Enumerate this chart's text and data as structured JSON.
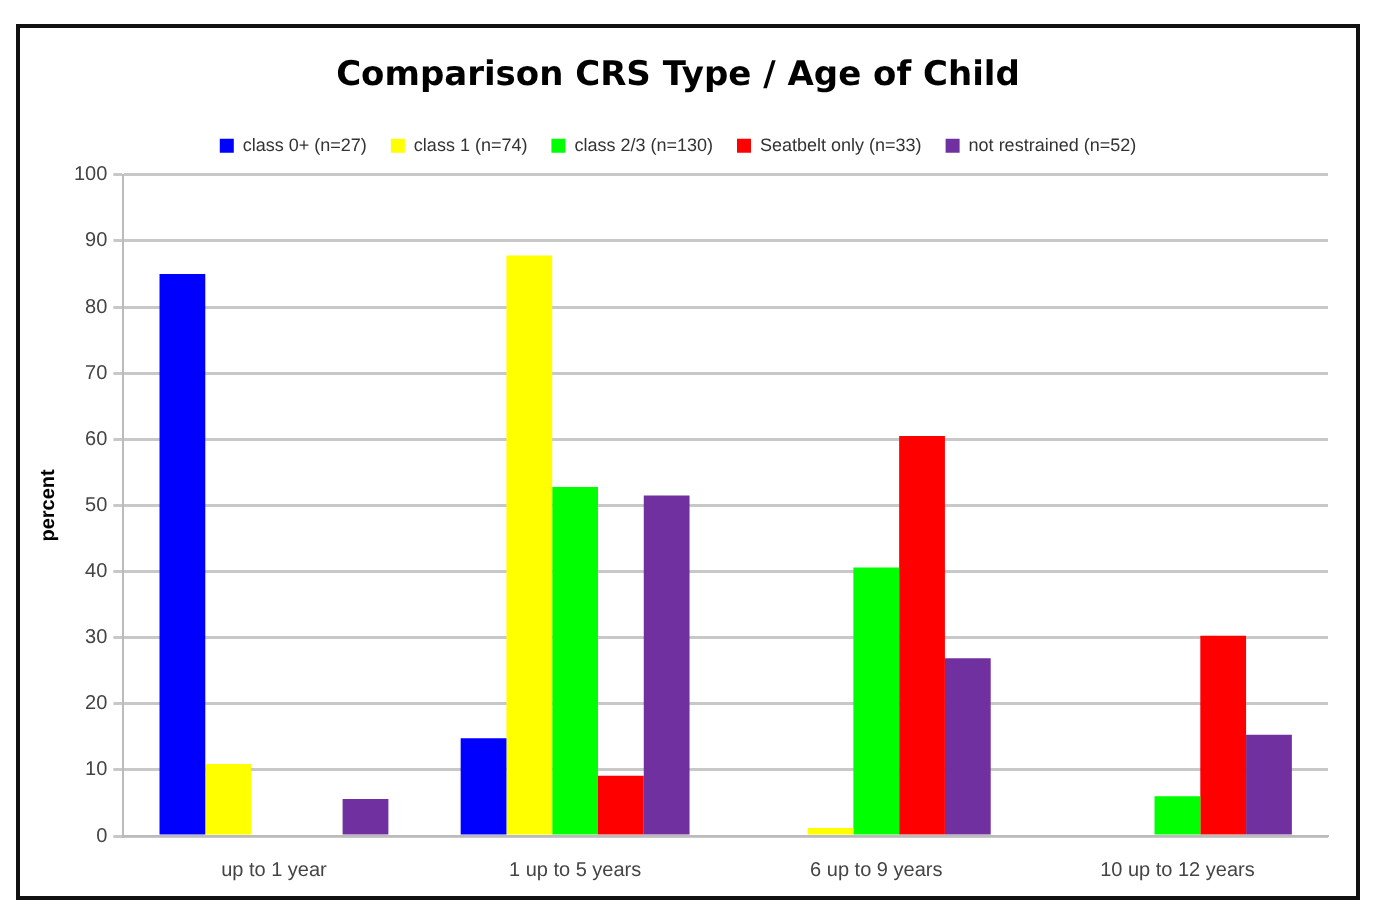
{
  "chart_data": {
    "type": "bar",
    "title": "Comparison CRS Type / Age of Child",
    "ylabel": "percent",
    "categories": [
      "up to 1 year",
      "1 up to 5 years",
      "6 up to 9 years",
      "10 up to 12 years"
    ],
    "series": [
      {
        "name": "class 0+ (n=27)",
        "color": "#0000ff",
        "values": [
          85,
          14.8,
          0,
          0
        ]
      },
      {
        "name": "class 1 (n=74)",
        "color": "#ffff00",
        "values": [
          10.9,
          87.8,
          1.2,
          0
        ]
      },
      {
        "name": "class 2/3 (n=130)",
        "color": "#00ff00",
        "values": [
          0,
          52.8,
          40.6,
          6
        ]
      },
      {
        "name": "Seatbelt only (n=33)",
        "color": "#ff0000",
        "values": [
          0,
          9.1,
          60.5,
          30.3
        ]
      },
      {
        "name": "not restrained (n=52)",
        "color": "#7030a0",
        "values": [
          5.6,
          51.5,
          26.9,
          15.3
        ]
      }
    ],
    "ylim": [
      0,
      100
    ],
    "yticks": [
      0,
      10,
      20,
      30,
      40,
      50,
      60,
      70,
      80,
      90,
      100
    ],
    "grid": "y",
    "legend": "top"
  }
}
